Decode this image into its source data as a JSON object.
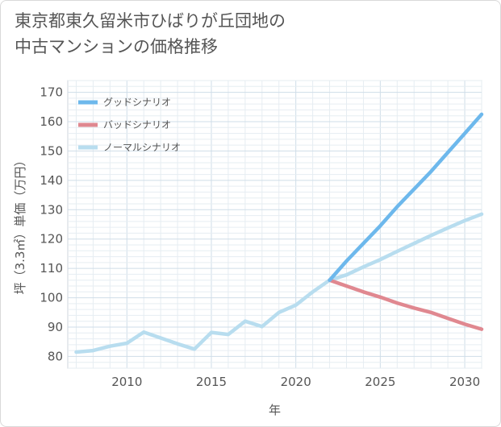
{
  "title_lines": [
    "東京都東久留米市ひばりが丘団地の",
    "中古マンションの価格推移"
  ],
  "chart_data": {
    "type": "line",
    "title": "東京都東久留米市ひばりが丘団地の中古マンションの価格推移",
    "xlabel": "年",
    "ylabel": "坪（3.3㎡）単価（万円）",
    "xlim": [
      2006.5,
      2031
    ],
    "ylim": [
      76,
      174
    ],
    "x_ticks": [
      2010,
      2015,
      2020,
      2025,
      2030
    ],
    "y_ticks": [
      80,
      90,
      100,
      110,
      120,
      130,
      140,
      150,
      160,
      170
    ],
    "legend_position": "top-left",
    "series": [
      {
        "name": "グッドシナリオ",
        "color": "#6db8ec",
        "x": [
          2022,
          2023,
          2024,
          2025,
          2026,
          2027,
          2028,
          2029,
          2030,
          2031
        ],
        "values": [
          106,
          112.5,
          118.5,
          124.5,
          131,
          137,
          143,
          149.5,
          156,
          162.5
        ]
      },
      {
        "name": "バッドシナリオ",
        "color": "#e08890",
        "x": [
          2022,
          2023,
          2024,
          2025,
          2026,
          2027,
          2028,
          2029,
          2030,
          2031
        ],
        "values": [
          106,
          104,
          102,
          100.2,
          98.2,
          96.5,
          95,
          93,
          91,
          89.3
        ]
      },
      {
        "name": "ノーマルシナリオ",
        "color": "#b8ddef",
        "x": [
          2007,
          2008,
          2009,
          2010,
          2011,
          2012,
          2013,
          2014,
          2015,
          2016,
          2017,
          2018,
          2019,
          2020,
          2021,
          2022,
          2023,
          2024,
          2025,
          2026,
          2027,
          2028,
          2029,
          2030,
          2031
        ],
        "values": [
          81.5,
          82,
          83.5,
          84.5,
          88.3,
          86.3,
          84.3,
          82.5,
          88.2,
          87.5,
          92,
          90.2,
          95,
          97.5,
          102,
          106,
          107.8,
          110.5,
          113,
          115.8,
          118.5,
          121.2,
          123.8,
          126.3,
          128.5
        ]
      }
    ]
  }
}
